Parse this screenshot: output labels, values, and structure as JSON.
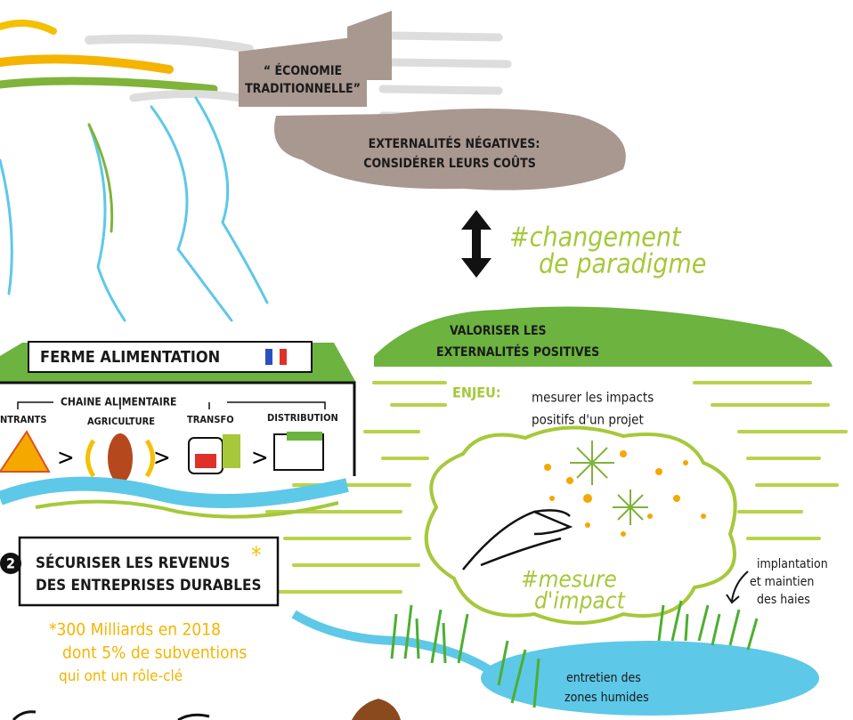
{
  "factory": {
    "lines": [
      "“ ÉCONOMIE",
      "TRADITIONNELLE”"
    ]
  },
  "negative": {
    "lines": [
      "EXTERNALITÉS NÉGATIVES:",
      "CONSIDÉRER LEURS COÛTS"
    ]
  },
  "hashtag_change": {
    "lines": [
      "#changement",
      "de paradigme"
    ]
  },
  "positive": {
    "lines": [
      "VALORISER LES",
      "EXTERNALITÉS POSITIVES"
    ]
  },
  "stake": {
    "label": "ENJEU:",
    "lines": [
      "mesurer les impacts",
      "positifs d'un projet"
    ]
  },
  "farm": {
    "title": "FERME ALIMENTATION",
    "chain": "CHAINE ALIMENTAIRE",
    "steps": [
      "NTRANTS",
      "AGRICULTURE",
      "TRANSFO",
      "DISTRIBUTION"
    ]
  },
  "secure": {
    "number": "2",
    "lines": [
      "SÉCURISER LES REVENUS",
      "DES ENTREPRISES DURABLES"
    ],
    "star": "*"
  },
  "note": {
    "lines": [
      "*300 Milliards en 2018",
      "dont 5% de subventions",
      "qui ont un rôle-clé"
    ]
  },
  "hashtag_impact": {
    "lines": [
      "#mesure",
      "d'impact"
    ]
  },
  "hedges": {
    "lines": [
      "implantation",
      "et maintien",
      "des haies"
    ]
  },
  "wetlands": {
    "lines": [
      "entretien des",
      "zones humides"
    ]
  }
}
